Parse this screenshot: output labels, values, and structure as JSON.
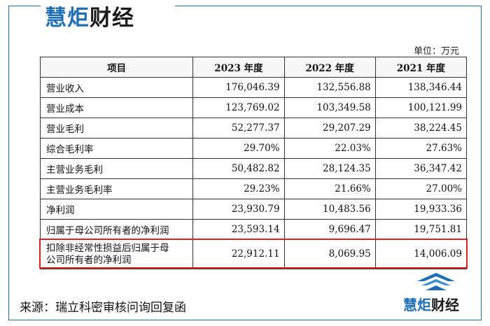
{
  "brand": {
    "part1": "慧炬",
    "part2": "财经"
  },
  "unit": "单位：万元",
  "table": {
    "headers": [
      "项目",
      "2023 年度",
      "2022 年度",
      "2021 年度"
    ],
    "rows": [
      {
        "label": "营业收入",
        "values": [
          "176,046.39",
          "132,556.88",
          "138,346.44"
        ]
      },
      {
        "label": "营业成本",
        "values": [
          "123,769.02",
          "103,349.58",
          "100,121.99"
        ]
      },
      {
        "label": "营业毛利",
        "values": [
          "52,277.37",
          "29,207.29",
          "38,224.45"
        ]
      },
      {
        "label": "综合毛利率",
        "values": [
          "29.70%",
          "22.03%",
          "27.63%"
        ]
      },
      {
        "label": "主营业务毛利",
        "values": [
          "50,482.82",
          "28,124.35",
          "36,347.42"
        ]
      },
      {
        "label": "主营业务毛利率",
        "values": [
          "29.23%",
          "21.66%",
          "27.00%"
        ]
      },
      {
        "label": "净利润",
        "values": [
          "23,930.79",
          "10,483.56",
          "19,933.36"
        ]
      },
      {
        "label": "归属于母公司所有者的净利润",
        "values": [
          "23,593.14",
          "9,696.47",
          "19,751.81"
        ]
      },
      {
        "label_line1": "扣除非经常性损益后归属于母",
        "label_line2": "公司所有者的净利润",
        "values": [
          "22,912.11",
          "8,069.95",
          "14,006.09"
        ]
      }
    ]
  },
  "source": "来源：瑞立科密审核问询回复函",
  "colors": {
    "brand_blue": "#1f6fb6",
    "highlight_red": "#e02020"
  }
}
